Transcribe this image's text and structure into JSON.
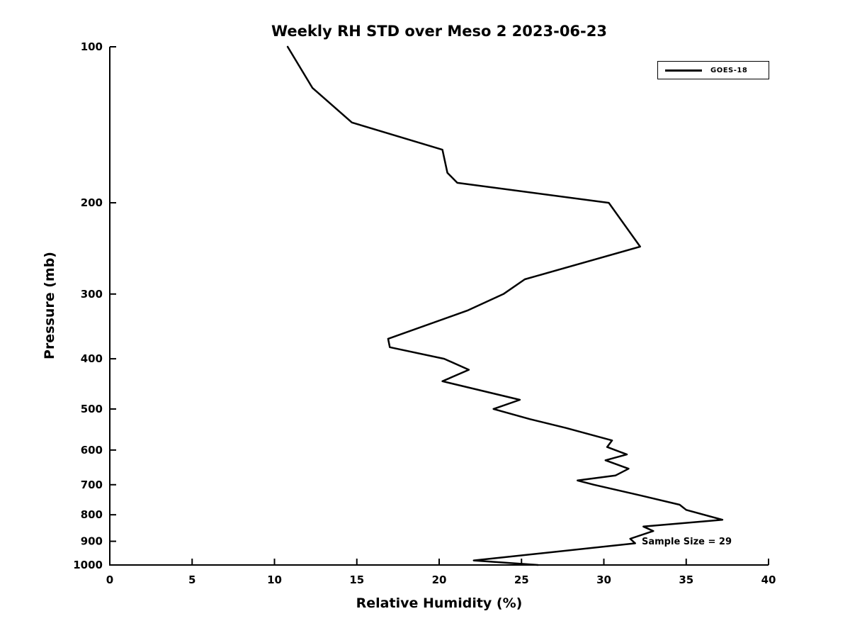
{
  "figure": {
    "background": "#ffffff",
    "axis_color": "#000000"
  },
  "chart_data": {
    "type": "line",
    "title": "Weekly RH STD over Meso 2 2023-06-23",
    "xlabel": "Relative Humidity (%)",
    "ylabel": "Pressure (mb)",
    "xlim": [
      0,
      40
    ],
    "ylim": [
      100,
      1000
    ],
    "x_scale": "linear",
    "y_scale": "log",
    "y_direction": "reversed",
    "grid": false,
    "x_ticks": [
      0,
      5,
      10,
      15,
      20,
      25,
      30,
      35,
      40
    ],
    "y_ticks": [
      100,
      200,
      300,
      400,
      500,
      600,
      700,
      800,
      900,
      1000
    ],
    "legend": {
      "position": "top-right",
      "entries": [
        "GOES-18"
      ]
    },
    "annotation": "Sample Size = 29",
    "points_format": "[rh_std_percent, pressure_mb]",
    "series": [
      {
        "name": "GOES-18",
        "color": "#000000",
        "line_width": 2.5,
        "points": [
          [
            10.8,
            100
          ],
          [
            12.3,
            120
          ],
          [
            14.7,
            140
          ],
          [
            20.2,
            158
          ],
          [
            20.5,
            175
          ],
          [
            21.1,
            183
          ],
          [
            30.3,
            200
          ],
          [
            32.2,
            243
          ],
          [
            25.2,
            281
          ],
          [
            23.9,
            300
          ],
          [
            21.7,
            323
          ],
          [
            16.9,
            366
          ],
          [
            17.0,
            380
          ],
          [
            20.3,
            400
          ],
          [
            21.8,
            420
          ],
          [
            20.2,
            442
          ],
          [
            24.9,
            480
          ],
          [
            23.3,
            500
          ],
          [
            25.5,
            523
          ],
          [
            27.7,
            544
          ],
          [
            30.5,
            575
          ],
          [
            30.2,
            592
          ],
          [
            31.4,
            612
          ],
          [
            30.1,
            628
          ],
          [
            31.5,
            652
          ],
          [
            30.7,
            672
          ],
          [
            28.4,
            687
          ],
          [
            29.4,
            700
          ],
          [
            32.3,
            735
          ],
          [
            34.6,
            765
          ],
          [
            35.0,
            783
          ],
          [
            37.2,
            818
          ],
          [
            32.4,
            843
          ],
          [
            33.0,
            860
          ],
          [
            31.6,
            890
          ],
          [
            31.9,
            908
          ],
          [
            22.1,
            980
          ],
          [
            26.0,
            1000
          ]
        ]
      }
    ]
  }
}
